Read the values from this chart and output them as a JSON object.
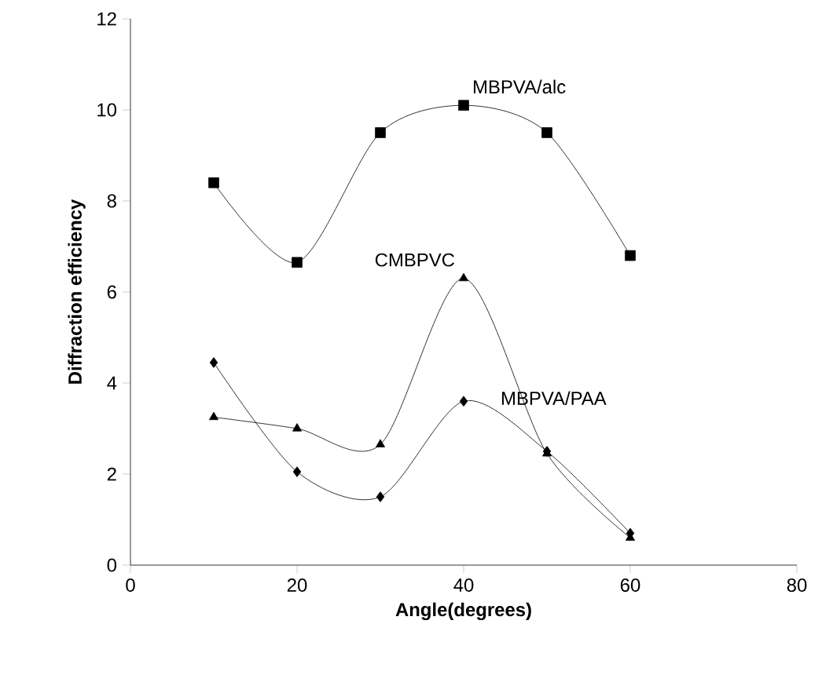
{
  "chart_data": {
    "type": "line",
    "xlabel": "Angle(degrees)",
    "ylabel": "Diffraction efficiency",
    "x": [
      10,
      20,
      30,
      40,
      50,
      60
    ],
    "series": [
      {
        "name": "MBPVA/alc",
        "color": "#000000",
        "marker": "square",
        "values": [
          8.4,
          6.65,
          9.5,
          10.1,
          9.5,
          6.8
        ]
      },
      {
        "name": "CMBPVC",
        "color": "#000000",
        "marker": "triangle",
        "values": [
          3.25,
          3.0,
          2.65,
          6.3,
          2.45,
          0.6
        ]
      },
      {
        "name": "MBPVA/PAA",
        "color": "#000000",
        "marker": "diamond",
        "values": [
          4.45,
          2.05,
          1.5,
          3.6,
          2.5,
          0.7
        ]
      }
    ],
    "xlim": [
      0,
      80
    ],
    "xticks": [
      0,
      20,
      40,
      60,
      80
    ],
    "ylim": [
      0,
      12
    ],
    "yticks": [
      0,
      2,
      4,
      6,
      8,
      10,
      12
    ],
    "grid": false,
    "line_style": "solid"
  }
}
